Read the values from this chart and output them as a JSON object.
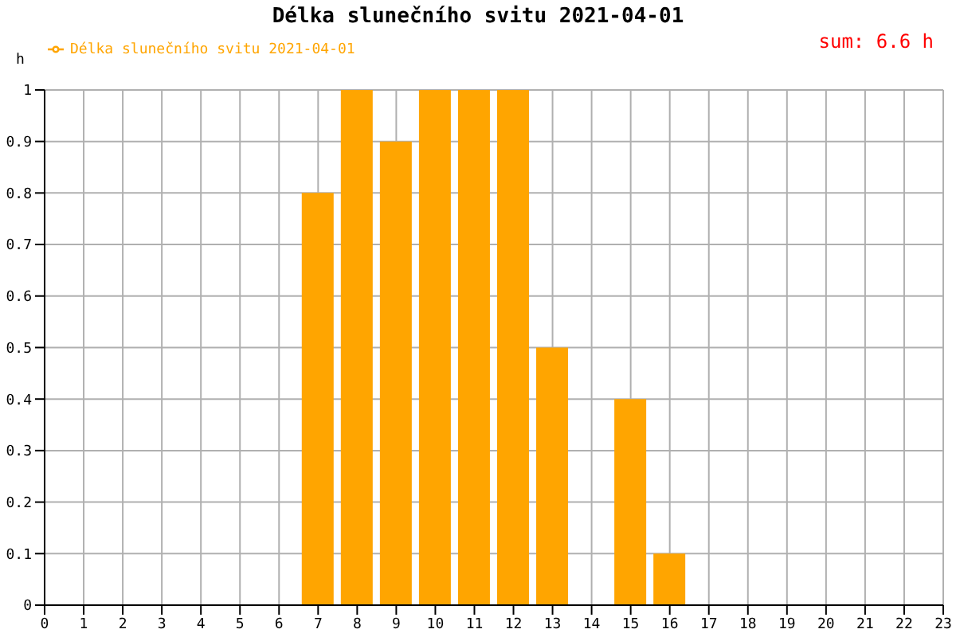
{
  "chart_data": {
    "type": "bar",
    "title": "Délka slunečního svitu 2021-04-01",
    "ylabel": "h",
    "annotations": [
      "sum: 6.6 h"
    ],
    "x": [
      7,
      8,
      9,
      10,
      11,
      12,
      13,
      15,
      16
    ],
    "series": [
      {
        "name": "Délka slunečního svitu 2021-04-01",
        "color": "#ffa500",
        "values": [
          0.8,
          1,
          0.9,
          1,
          1,
          1,
          0.5,
          0.4,
          0.1
        ]
      }
    ],
    "xlim": [
      0,
      23
    ],
    "xticks": [
      0,
      1,
      2,
      3,
      4,
      5,
      6,
      7,
      8,
      9,
      10,
      11,
      12,
      13,
      14,
      15,
      16,
      17,
      18,
      19,
      20,
      21,
      22,
      23
    ],
    "ylim": [
      0,
      1
    ],
    "yticks": [
      0,
      0.1,
      0.2,
      0.3,
      0.4,
      0.5,
      0.6,
      0.7,
      0.8,
      0.9,
      1
    ],
    "grid": true,
    "legend": "top left"
  }
}
